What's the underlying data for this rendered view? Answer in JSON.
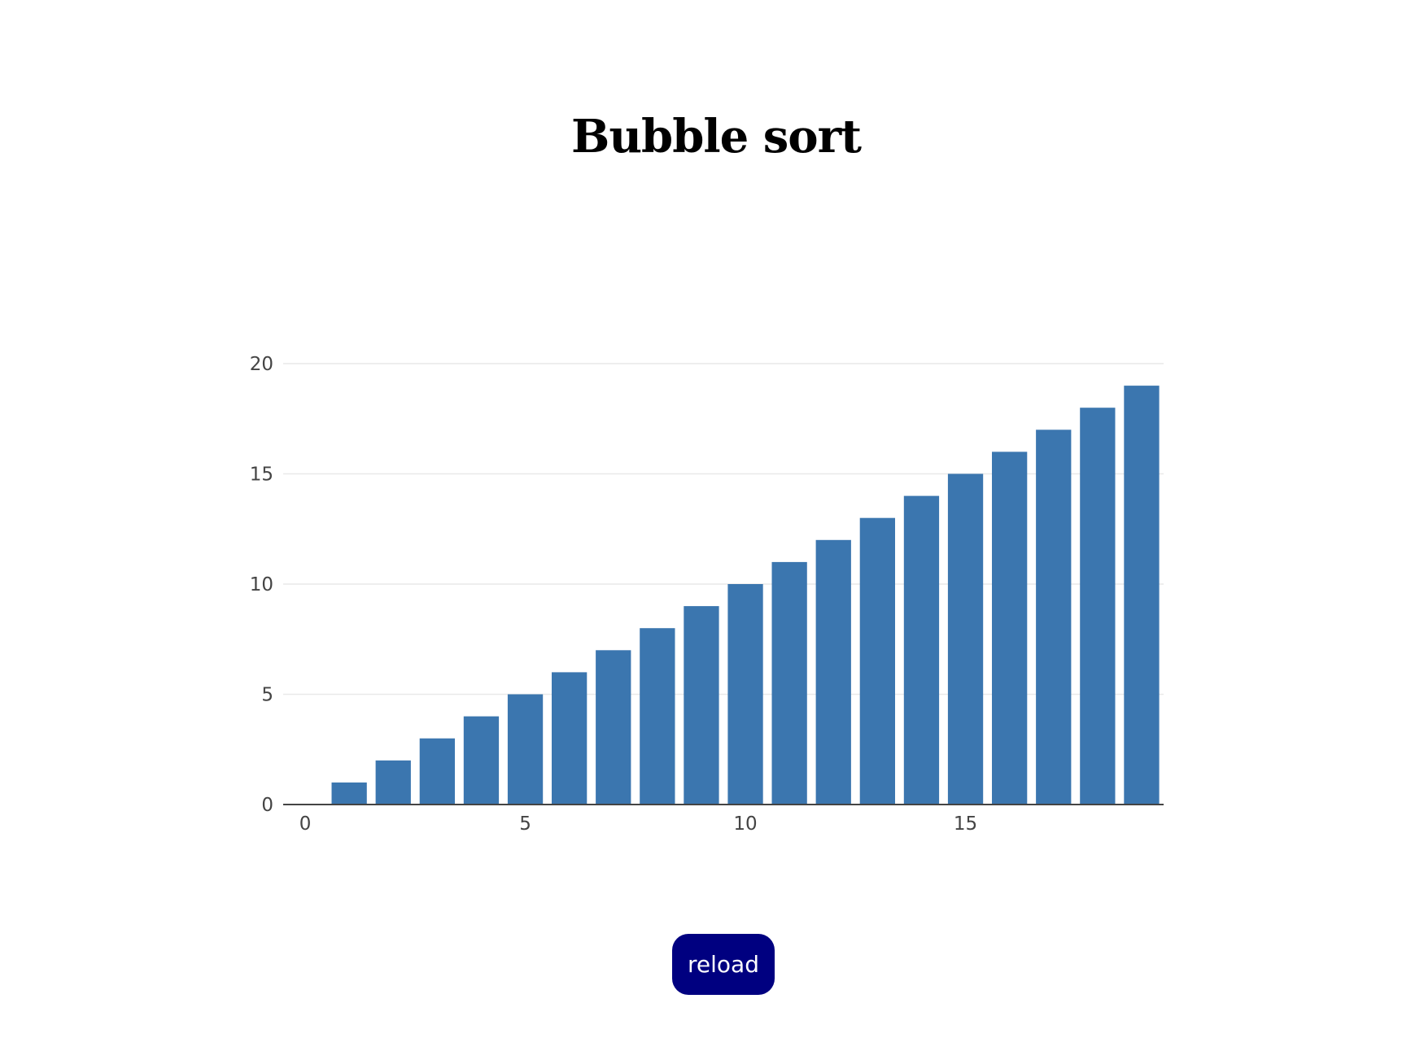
{
  "page": {
    "title": "Bubble sort"
  },
  "controls": {
    "reload_label": "reload"
  },
  "colors": {
    "bar": "#3b76af",
    "grid": "#e9e9e9",
    "axis": "#444444"
  },
  "chart_data": {
    "type": "bar",
    "title": "",
    "xlabel": "",
    "ylabel": "",
    "x": [
      0,
      1,
      2,
      3,
      4,
      5,
      6,
      7,
      8,
      9,
      10,
      11,
      12,
      13,
      14,
      15,
      16,
      17,
      18,
      19
    ],
    "values": [
      0,
      1,
      2,
      3,
      4,
      5,
      6,
      7,
      8,
      9,
      10,
      11,
      12,
      13,
      14,
      15,
      16,
      17,
      18,
      19
    ],
    "xlim": [
      -0.5,
      19.5
    ],
    "ylim": [
      0,
      20
    ],
    "x_ticks": [
      0,
      5,
      10,
      15
    ],
    "y_ticks": [
      0,
      5,
      10,
      15,
      20
    ],
    "grid": true,
    "legend": "none"
  }
}
